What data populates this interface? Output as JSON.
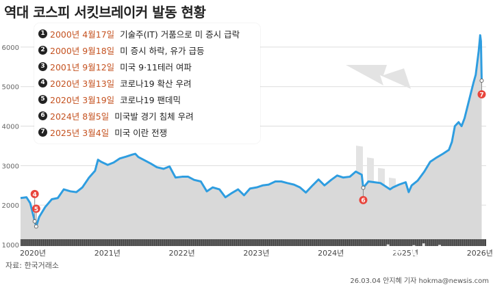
{
  "title": "역대 코스피 서킷브레이커 발동 현황",
  "source": "자료: 한국거래소",
  "credit": "26.03.04 안지혜 기자 hokma@newsis.com",
  "watermark": "뉴시스",
  "colors": {
    "line": "#2e9de0",
    "area": "#d9d9d9",
    "marker": "#e8453c",
    "date_text": "#c4511f"
  },
  "events": [
    {
      "num": "1",
      "date": "2000년 4월17일",
      "event": "기술주(IT) 거품으로 미 증시 급락"
    },
    {
      "num": "2",
      "date": "2000년 9월18일",
      "event": "미 증시 하락, 유가 급등"
    },
    {
      "num": "3",
      "date": "2001년 9월12일",
      "event": "미국 9·11테러 여파"
    },
    {
      "num": "4",
      "date": "2020년 3월13일",
      "event": "코로나19 확산 우려"
    },
    {
      "num": "5",
      "date": "2020년 3월19일",
      "event": "코로나19 팬데믹"
    },
    {
      "num": "6",
      "date": "2024년 8월5일",
      "event": "미국발 경기 침체 우려"
    },
    {
      "num": "7",
      "date": "2025년 3월4일",
      "event": "미국 이란 전쟁"
    }
  ],
  "chart_data": {
    "type": "area",
    "title": "역대 코스피 서킷브레이커 발동 현황",
    "xlabel": "",
    "ylabel": "",
    "ylim": [
      1000,
      6500
    ],
    "xlim": [
      2020.0,
      2026.25
    ],
    "yticks": [
      1000,
      2000,
      3000,
      4000,
      5000,
      6000
    ],
    "xticks": [
      {
        "x": 2020.0,
        "label": "2020년"
      },
      {
        "x": 2021.0,
        "label": "2021년"
      },
      {
        "x": 2022.0,
        "label": "2022년"
      },
      {
        "x": 2023.0,
        "label": "2023년"
      },
      {
        "x": 2024.0,
        "label": "2024년"
      },
      {
        "x": 2025.0,
        "label": "2025년"
      },
      {
        "x": 2026.0,
        "label": "2026년"
      }
    ],
    "grid": true,
    "series": [
      {
        "points": [
          [
            2020.0,
            2180
          ],
          [
            2020.08,
            2200
          ],
          [
            2020.13,
            2050
          ],
          [
            2020.17,
            1750
          ],
          [
            2020.21,
            1460
          ],
          [
            2020.25,
            1700
          ],
          [
            2020.33,
            1950
          ],
          [
            2020.42,
            2150
          ],
          [
            2020.5,
            2180
          ],
          [
            2020.58,
            2400
          ],
          [
            2020.67,
            2350
          ],
          [
            2020.75,
            2330
          ],
          [
            2020.83,
            2450
          ],
          [
            2020.92,
            2700
          ],
          [
            2021.0,
            2870
          ],
          [
            2021.04,
            3150
          ],
          [
            2021.08,
            3100
          ],
          [
            2021.17,
            3020
          ],
          [
            2021.25,
            3080
          ],
          [
            2021.33,
            3180
          ],
          [
            2021.42,
            3230
          ],
          [
            2021.5,
            3280
          ],
          [
            2021.54,
            3300
          ],
          [
            2021.58,
            3220
          ],
          [
            2021.67,
            3130
          ],
          [
            2021.75,
            3050
          ],
          [
            2021.83,
            2960
          ],
          [
            2021.92,
            2920
          ],
          [
            2022.0,
            2980
          ],
          [
            2022.08,
            2700
          ],
          [
            2022.17,
            2720
          ],
          [
            2022.25,
            2720
          ],
          [
            2022.33,
            2640
          ],
          [
            2022.42,
            2600
          ],
          [
            2022.5,
            2350
          ],
          [
            2022.58,
            2450
          ],
          [
            2022.67,
            2400
          ],
          [
            2022.75,
            2200
          ],
          [
            2022.83,
            2300
          ],
          [
            2022.92,
            2400
          ],
          [
            2023.0,
            2250
          ],
          [
            2023.08,
            2420
          ],
          [
            2023.17,
            2450
          ],
          [
            2023.25,
            2500
          ],
          [
            2023.33,
            2520
          ],
          [
            2023.42,
            2600
          ],
          [
            2023.5,
            2600
          ],
          [
            2023.58,
            2560
          ],
          [
            2023.67,
            2520
          ],
          [
            2023.75,
            2450
          ],
          [
            2023.83,
            2320
          ],
          [
            2023.92,
            2500
          ],
          [
            2024.0,
            2650
          ],
          [
            2024.08,
            2500
          ],
          [
            2024.17,
            2640
          ],
          [
            2024.25,
            2750
          ],
          [
            2024.33,
            2700
          ],
          [
            2024.42,
            2720
          ],
          [
            2024.5,
            2850
          ],
          [
            2024.58,
            2770
          ],
          [
            2024.6,
            2440
          ],
          [
            2024.67,
            2600
          ],
          [
            2024.75,
            2580
          ],
          [
            2024.83,
            2560
          ],
          [
            2024.92,
            2450
          ],
          [
            2024.96,
            2400
          ],
          [
            2025.0,
            2450
          ],
          [
            2025.08,
            2520
          ],
          [
            2025.17,
            2580
          ],
          [
            2025.21,
            2330
          ],
          [
            2025.25,
            2500
          ],
          [
            2025.33,
            2620
          ],
          [
            2025.42,
            2850
          ],
          [
            2025.5,
            3100
          ],
          [
            2025.58,
            3200
          ],
          [
            2025.67,
            3300
          ],
          [
            2025.75,
            3400
          ],
          [
            2025.79,
            3600
          ],
          [
            2025.83,
            4000
          ],
          [
            2025.88,
            4100
          ],
          [
            2025.92,
            4000
          ],
          [
            2025.96,
            4200
          ],
          [
            2026.0,
            4500
          ],
          [
            2026.04,
            4800
          ],
          [
            2026.08,
            5100
          ],
          [
            2026.11,
            5300
          ],
          [
            2026.13,
            5600
          ],
          [
            2026.15,
            5900
          ],
          [
            2026.17,
            6300
          ],
          [
            2026.18,
            6150
          ],
          [
            2026.19,
            5150
          ]
        ]
      }
    ],
    "markers": [
      {
        "label": "4",
        "x": 2020.19,
        "y": 1590,
        "side": "above",
        "offset": 40
      },
      {
        "label": "5",
        "x": 2020.21,
        "y": 1460,
        "side": "above",
        "offset": 26
      },
      {
        "label": "6",
        "x": 2024.6,
        "y": 2440,
        "side": "below",
        "offset": 18
      },
      {
        "label": "7",
        "x": 2026.19,
        "y": 5150,
        "side": "below",
        "offset": 20
      }
    ]
  }
}
